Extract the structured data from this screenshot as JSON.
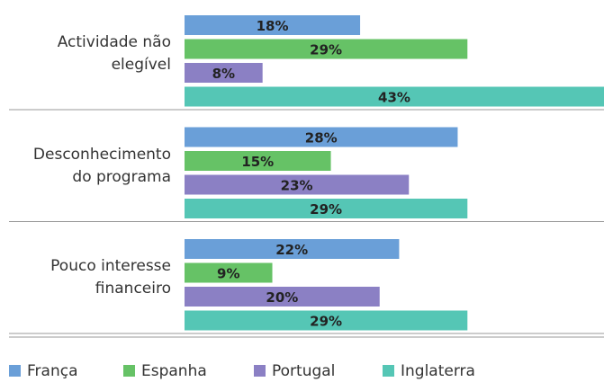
{
  "chart_data": {
    "type": "hbar",
    "categories": [
      "Actividade não\nelegível",
      "Desconhecimento\ndo programa",
      "Pouco interesse\nfinanceiro"
    ],
    "series": [
      {
        "name": "França",
        "color": "#6a9fd8",
        "values": [
          18,
          28,
          22
        ],
        "value_labels": [
          "18%",
          "28%",
          "22%"
        ]
      },
      {
        "name": "Espanha",
        "color": "#66c266",
        "values": [
          29,
          15,
          9
        ],
        "value_labels": [
          "29%",
          "15%",
          "9%"
        ]
      },
      {
        "name": "Portugal",
        "color": "#8b80c4",
        "values": [
          8,
          23,
          20
        ],
        "value_labels": [
          "8%",
          "23%",
          "20%"
        ]
      },
      {
        "name": "Inglaterra",
        "color": "#55c6b5",
        "values": [
          43,
          29,
          29
        ],
        "value_labels": [
          "43%",
          "29%",
          "29%"
        ]
      }
    ],
    "legend": "bottom"
  }
}
